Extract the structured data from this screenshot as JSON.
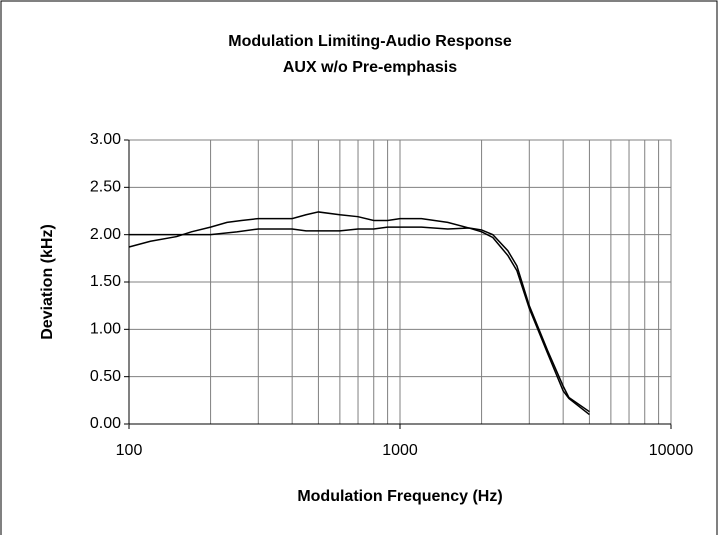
{
  "chart_data": {
    "type": "line",
    "title": "Modulation Limiting-Audio Response",
    "subtitle": "AUX w/o Pre-emphasis",
    "x_label": "Modulation Frequency (Hz)",
    "y_label": "Deviation (kHz)",
    "log_x": true,
    "grid": true,
    "minor_grid": true,
    "xlim": [
      100,
      10000
    ],
    "xticks": [
      100,
      1000,
      10000
    ],
    "ylim": [
      0,
      3
    ],
    "yticks": [
      {
        "value": 0,
        "label": "0.00"
      },
      {
        "value": 0.5,
        "label": "0.50"
      },
      {
        "value": 1,
        "label": "1.00"
      },
      {
        "value": 1.5,
        "label": "1.50"
      },
      {
        "value": 2,
        "label": "2.00"
      },
      {
        "value": 2.5,
        "label": "2.50"
      },
      {
        "value": 3,
        "label": "3.00"
      }
    ],
    "series": [
      {
        "color": "#000000",
        "x": [
          100,
          120,
          150,
          170,
          200,
          230,
          260,
          300,
          400,
          450,
          500,
          600,
          700,
          800,
          900,
          1000,
          1200,
          1500,
          1800,
          2000,
          2200,
          2500,
          2700,
          3000,
          3500,
          4000,
          4200,
          5000
        ],
        "values": [
          1.87,
          1.93,
          1.98,
          2.03,
          2.08,
          2.13,
          2.15,
          2.17,
          2.17,
          2.21,
          2.24,
          2.21,
          2.19,
          2.15,
          2.15,
          2.17,
          2.17,
          2.13,
          2.07,
          2.03,
          1.97,
          1.78,
          1.62,
          1.22,
          0.75,
          0.35,
          0.27,
          0.1
        ]
      },
      {
        "color": "#000000",
        "x": [
          100,
          200,
          250,
          300,
          400,
          450,
          600,
          700,
          800,
          900,
          1200,
          1500,
          1800,
          2000,
          2200,
          2500,
          2700,
          3000,
          3500,
          4000,
          4200,
          5000
        ],
        "values": [
          2.0,
          2.0,
          2.03,
          2.06,
          2.06,
          2.04,
          2.04,
          2.06,
          2.06,
          2.08,
          2.08,
          2.06,
          2.07,
          2.05,
          2.0,
          1.83,
          1.67,
          1.25,
          0.78,
          0.4,
          0.28,
          0.13
        ]
      }
    ]
  }
}
